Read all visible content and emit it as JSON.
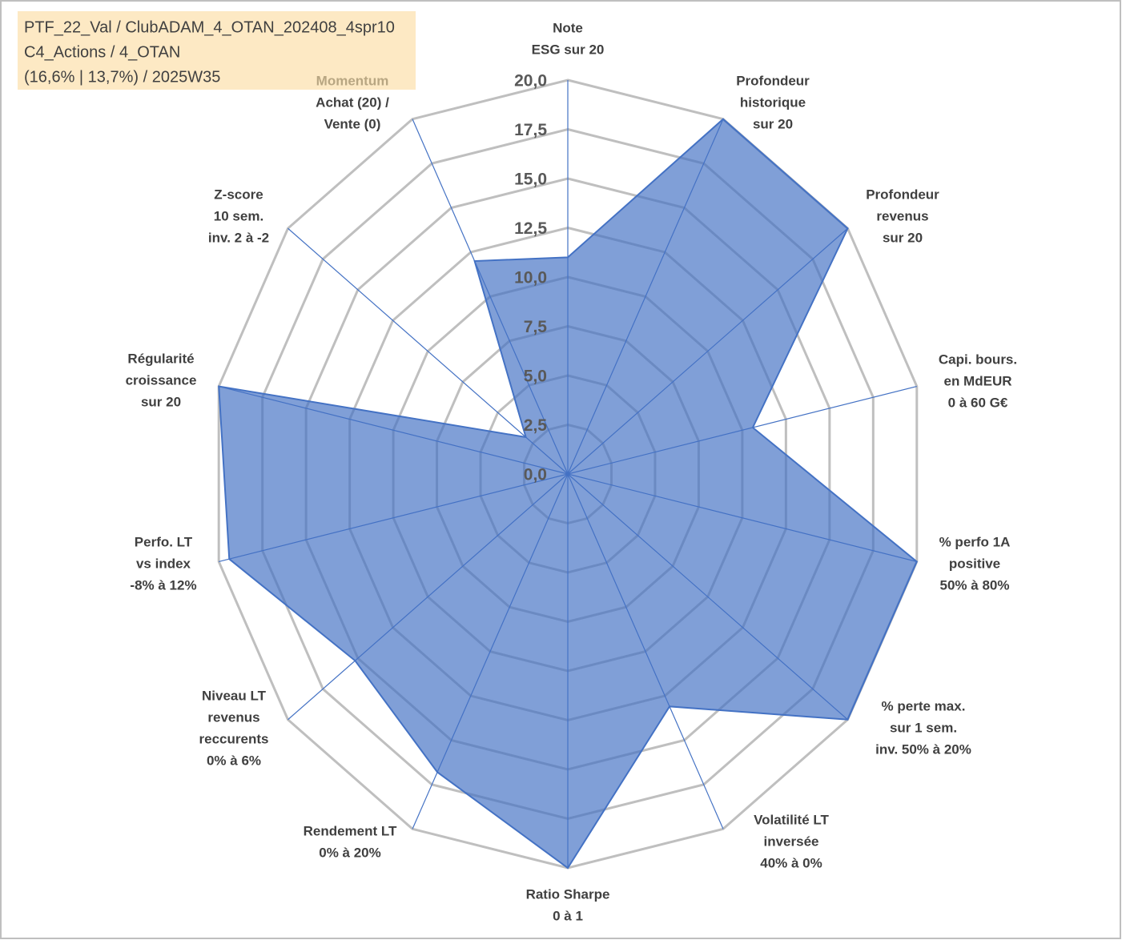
{
  "chart_data": {
    "type": "radar",
    "title_lines": [
      "PTF_22_Val / ClubADAM_4_OTAN_202408_4spr10",
      "C4_Actions / 4_OTAN",
      "(16,6% | 13,7%) / 2025W35"
    ],
    "categories": [
      [
        "Note",
        "ESG sur 20"
      ],
      [
        "Profondeur",
        "historique",
        "sur 20"
      ],
      [
        "Profondeur",
        "revenus",
        "sur 20"
      ],
      [
        "Capi. bours.",
        "en MdEUR",
        "0 à 60 G€"
      ],
      [
        "% perfo 1A",
        "positive",
        "50% à 80%"
      ],
      [
        "% perte max.",
        "sur 1 sem.",
        "inv. 50% à 20%"
      ],
      [
        "Volatilité LT",
        "inversée",
        "40% à 0%"
      ],
      [
        "Ratio Sharpe",
        "0 à 1"
      ],
      [
        "Rendement LT",
        "0% à 20%"
      ],
      [
        "Niveau LT",
        "revenus",
        "reccurents",
        "0% à 6%"
      ],
      [
        "Perfo. LT",
        "vs index",
        "-8% à 12%"
      ],
      [
        "Régularité",
        "croissance",
        "sur 20"
      ],
      [
        "Z-score",
        "10 sem.",
        "inv. 2 à -2"
      ],
      [
        "Momentum",
        "Achat (20) /",
        "Vente (0)"
      ]
    ],
    "series": [
      {
        "color": "#4472c4",
        "values": [
          11,
          20,
          20,
          10.6,
          20,
          20,
          13.1,
          20,
          16.8,
          15.2,
          19.4,
          20,
          3,
          12
        ]
      }
    ],
    "ylim": [
      0,
      20
    ],
    "yticks": [
      {
        "value": 0,
        "label": "0,0"
      },
      {
        "value": 2.5,
        "label": "2,5"
      },
      {
        "value": 5,
        "label": "5,0"
      },
      {
        "value": 7.5,
        "label": "7,5"
      },
      {
        "value": 10,
        "label": "10,0"
      },
      {
        "value": 12.5,
        "label": "12,5"
      },
      {
        "value": 15,
        "label": "15,0"
      },
      {
        "value": 17.5,
        "label": "17,5"
      },
      {
        "value": 20,
        "label": "20,0"
      }
    ],
    "grid": true
  }
}
